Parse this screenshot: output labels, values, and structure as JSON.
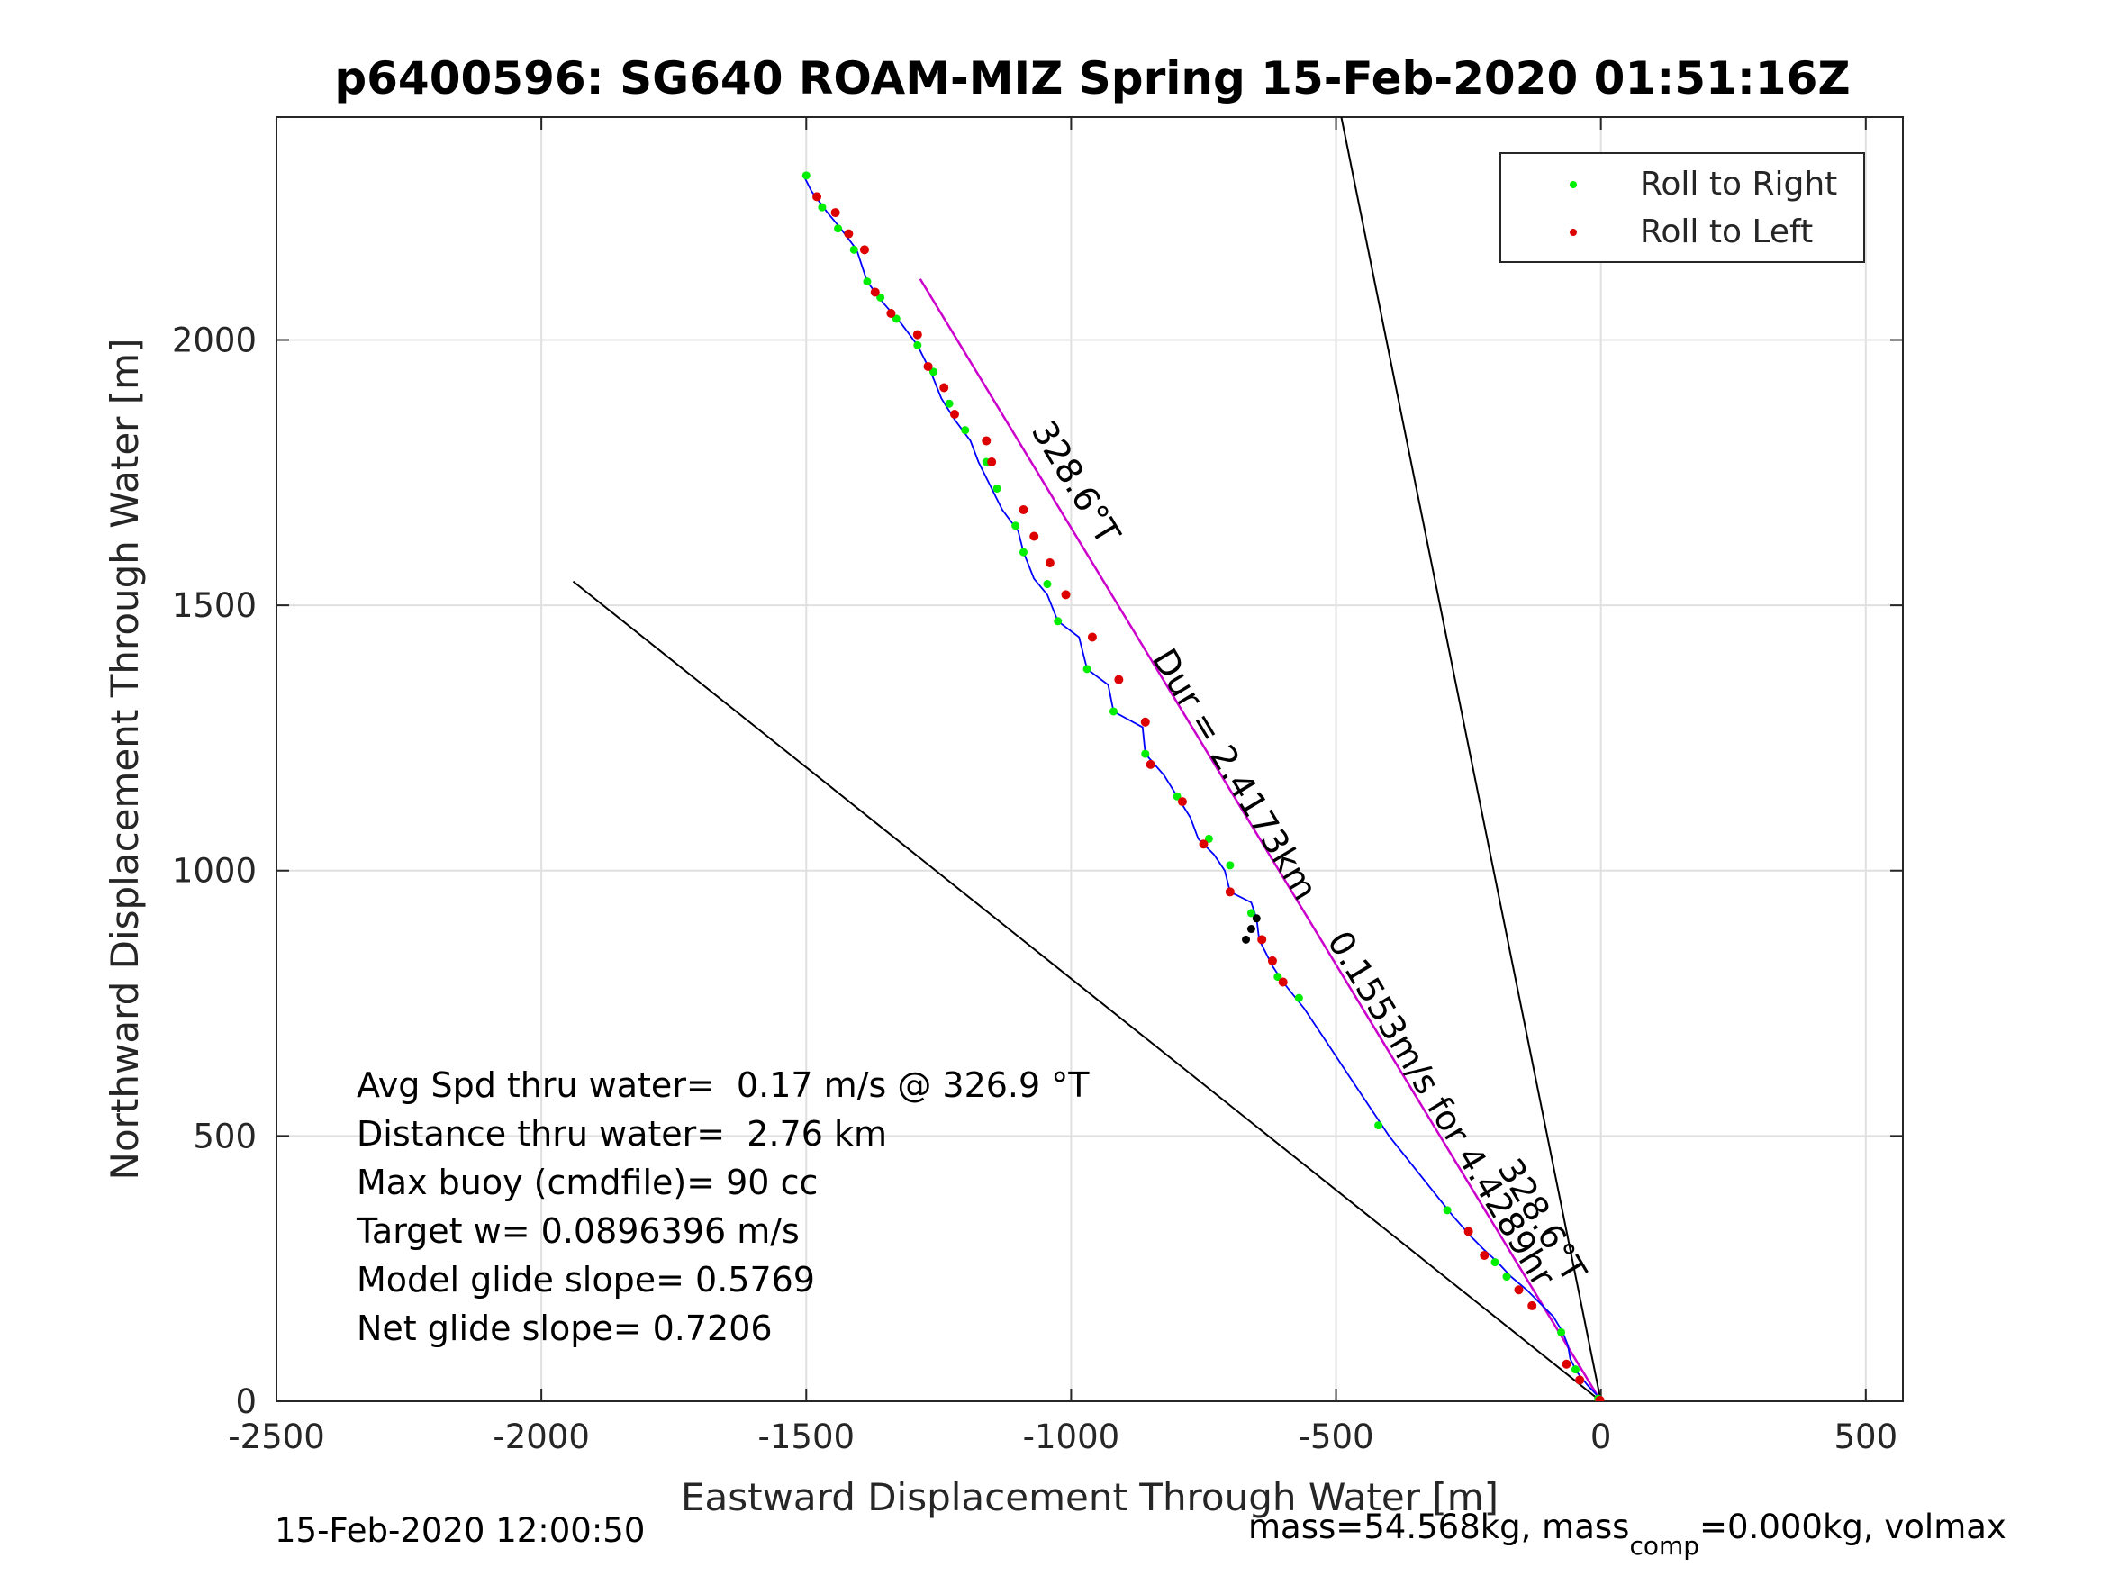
{
  "chart_data": {
    "type": "line",
    "title": "p6400596: SG640 ROAM-MIZ Spring 15-Feb-2020 01:51:16Z",
    "xlabel": "Eastward Displacement Through Water [m]",
    "ylabel": "Northward Displacement Through Water [m]",
    "xlim": [
      -2500,
      570
    ],
    "ylim": [
      0,
      2420
    ],
    "x_ticks": [
      "-2500",
      "-2000",
      "-1500",
      "-1000",
      "-500",
      "0",
      "500"
    ],
    "x_tick_values": [
      -2500,
      -2000,
      -1500,
      -1000,
      -500,
      0,
      500
    ],
    "y_ticks": [
      "0",
      "500",
      "1000",
      "1500",
      "2000"
    ],
    "y_tick_values": [
      0,
      500,
      1000,
      1500,
      2000
    ],
    "grid": true,
    "legend_position": "top-right",
    "legend": [
      {
        "name": "Roll to Right",
        "color": "#00ee00"
      },
      {
        "name": "Roll to Left",
        "color": "#dd0000"
      }
    ],
    "track_color": "#0000ff",
    "heading_line_color": "#cc00cc",
    "track_points": [
      [
        0,
        0
      ],
      [
        -8,
        12
      ],
      [
        -25,
        30
      ],
      [
        -45,
        55
      ],
      [
        -58,
        80
      ],
      [
        -62,
        105
      ],
      [
        -72,
        130
      ],
      [
        -90,
        160
      ],
      [
        -115,
        185
      ],
      [
        -140,
        210
      ],
      [
        -170,
        235
      ],
      [
        -195,
        262
      ],
      [
        -220,
        285
      ],
      [
        -245,
        310
      ],
      [
        -280,
        350
      ],
      [
        -320,
        400
      ],
      [
        -360,
        450
      ],
      [
        -400,
        500
      ],
      [
        -440,
        560
      ],
      [
        -480,
        620
      ],
      [
        -520,
        680
      ],
      [
        -560,
        740
      ],
      [
        -600,
        790
      ],
      [
        -620,
        820
      ],
      [
        -645,
        870
      ],
      [
        -650,
        910
      ],
      [
        -660,
        940
      ],
      [
        -700,
        960
      ],
      [
        -710,
        1000
      ],
      [
        -730,
        1030
      ],
      [
        -760,
        1060
      ],
      [
        -775,
        1100
      ],
      [
        -800,
        1140
      ],
      [
        -825,
        1180
      ],
      [
        -860,
        1220
      ],
      [
        -865,
        1270
      ],
      [
        -920,
        1300
      ],
      [
        -930,
        1350
      ],
      [
        -970,
        1380
      ],
      [
        -985,
        1440
      ],
      [
        -1025,
        1470
      ],
      [
        -1045,
        1520
      ],
      [
        -1070,
        1550
      ],
      [
        -1090,
        1600
      ],
      [
        -1100,
        1640
      ],
      [
        -1130,
        1680
      ],
      [
        -1150,
        1720
      ],
      [
        -1175,
        1770
      ],
      [
        -1190,
        1810
      ],
      [
        -1220,
        1850
      ],
      [
        -1245,
        1890
      ],
      [
        -1265,
        1940
      ],
      [
        -1290,
        1990
      ],
      [
        -1320,
        2030
      ],
      [
        -1355,
        2070
      ],
      [
        -1385,
        2110
      ],
      [
        -1405,
        2170
      ],
      [
        -1435,
        2210
      ],
      [
        -1460,
        2240
      ],
      [
        -1490,
        2280
      ],
      [
        -1505,
        2310
      ]
    ],
    "roll_right_points": [
      [
        -5,
        5
      ],
      [
        -48,
        60
      ],
      [
        -75,
        130
      ],
      [
        -178,
        235
      ],
      [
        -200,
        262
      ],
      [
        -290,
        360
      ],
      [
        -420,
        520
      ],
      [
        -570,
        760
      ],
      [
        -610,
        800
      ],
      [
        -660,
        920
      ],
      [
        -700,
        1010
      ],
      [
        -740,
        1060
      ],
      [
        -800,
        1140
      ],
      [
        -860,
        1220
      ],
      [
        -920,
        1300
      ],
      [
        -970,
        1380
      ],
      [
        -1025,
        1470
      ],
      [
        -1045,
        1540
      ],
      [
        -1090,
        1600
      ],
      [
        -1105,
        1650
      ],
      [
        -1140,
        1720
      ],
      [
        -1160,
        1770
      ],
      [
        -1200,
        1830
      ],
      [
        -1230,
        1880
      ],
      [
        -1260,
        1940
      ],
      [
        -1290,
        1990
      ],
      [
        -1330,
        2040
      ],
      [
        -1360,
        2080
      ],
      [
        -1385,
        2110
      ],
      [
        -1410,
        2170
      ],
      [
        -1440,
        2210
      ],
      [
        -1470,
        2250
      ],
      [
        -1500,
        2310
      ]
    ],
    "roll_left_points": [
      [
        -2,
        2
      ],
      [
        -40,
        40
      ],
      [
        -65,
        70
      ],
      [
        -130,
        180
      ],
      [
        -155,
        210
      ],
      [
        -220,
        275
      ],
      [
        -250,
        320
      ],
      [
        -600,
        790
      ],
      [
        -620,
        830
      ],
      [
        -640,
        870
      ],
      [
        -700,
        960
      ],
      [
        -750,
        1050
      ],
      [
        -790,
        1130
      ],
      [
        -850,
        1200
      ],
      [
        -860,
        1280
      ],
      [
        -910,
        1360
      ],
      [
        -960,
        1440
      ],
      [
        -1010,
        1520
      ],
      [
        -1040,
        1580
      ],
      [
        -1070,
        1630
      ],
      [
        -1090,
        1680
      ],
      [
        -1150,
        1770
      ],
      [
        -1160,
        1810
      ],
      [
        -1220,
        1860
      ],
      [
        -1240,
        1910
      ],
      [
        -1270,
        1950
      ],
      [
        -1290,
        2010
      ],
      [
        -1340,
        2050
      ],
      [
        -1370,
        2090
      ],
      [
        -1390,
        2170
      ],
      [
        -1420,
        2200
      ],
      [
        -1445,
        2240
      ],
      [
        -1480,
        2270
      ]
    ],
    "black_marker_points": [
      [
        -650,
        910
      ],
      [
        -660,
        890
      ],
      [
        -670,
        870
      ]
    ],
    "heading_line": [
      [
        0,
        0
      ],
      [
        -1285,
        2115
      ]
    ],
    "reference_lines": [
      [
        [
          0,
          0
        ],
        [
          -1940,
          1545
        ]
      ],
      [
        [
          0,
          0
        ],
        [
          -490,
          2420
        ]
      ]
    ],
    "annotations": [
      {
        "text": "328.6°T",
        "x": -1010,
        "y": 1720,
        "angle_deg": 59
      },
      {
        "text": "Dur = 2.4173km",
        "x": -710,
        "y": 1170,
        "angle_deg": 59
      },
      {
        "text": "0.1553m/s for 4.4289hr",
        "x": -320,
        "y": 540,
        "angle_deg": 59
      },
      {
        "text": "328.6°T",
        "x": -130,
        "y": 330,
        "angle_deg": 59
      }
    ],
    "stats": [
      "Avg Spd thru water=  0.17 m/s @ 326.9 °T",
      "Distance thru water=  2.76 km",
      "Max buoy (cmdfile)= 90 cc",
      "Target w= 0.0896396 m/s",
      "Model glide slope= 0.5769",
      "Net glide slope= 0.7206"
    ]
  },
  "footer": {
    "timestamp": "15-Feb-2020 12:00:50",
    "mass_prefix": "mass=54.568kg, mass",
    "mass_subscript": "comp",
    "mass_suffix": "=0.000kg, volmax"
  },
  "colors": {
    "axis": "#262626",
    "grid": "#e0e0e0",
    "reference_line": "#000000"
  }
}
